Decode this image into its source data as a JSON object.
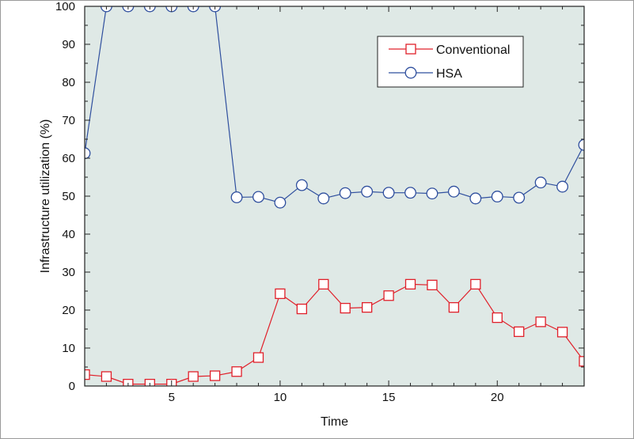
{
  "chart_data": {
    "type": "line",
    "title": "",
    "xlabel": "Time",
    "ylabel": "Infrastructure utilization (%)",
    "xlim": [
      1,
      24
    ],
    "ylim": [
      0,
      100
    ],
    "xticks": [
      5,
      10,
      15,
      20
    ],
    "yticks": [
      0,
      10,
      20,
      30,
      40,
      50,
      60,
      70,
      80,
      90,
      100
    ],
    "grid": false,
    "legend": "top-right",
    "background_color": "#dfe9e6",
    "series": [
      {
        "name": "Conventional",
        "marker": "square",
        "color": "#e0202a",
        "x": [
          1,
          2,
          3,
          4,
          5,
          6,
          7,
          8,
          9,
          10,
          11,
          12,
          13,
          14,
          15,
          16,
          17,
          18,
          19,
          20,
          21,
          22,
          23,
          24
        ],
        "values": [
          3,
          2.5,
          0.5,
          0.5,
          0.5,
          2.5,
          2.7,
          3.8,
          7.5,
          24.3,
          20.3,
          26.8,
          20.5,
          20.7,
          23.8,
          26.8,
          26.6,
          20.7,
          26.8,
          18,
          14.3,
          16.9,
          14.2,
          6.5
        ]
      },
      {
        "name": "HSA",
        "marker": "circle",
        "color": "#2f4f9e",
        "x": [
          1,
          2,
          3,
          4,
          5,
          6,
          7,
          8,
          9,
          10,
          11,
          12,
          13,
          14,
          15,
          16,
          17,
          18,
          19,
          20,
          21,
          22,
          23,
          24
        ],
        "values": [
          61.3,
          100,
          100,
          100,
          100,
          100,
          100,
          49.7,
          49.8,
          48.3,
          52.9,
          49.4,
          50.8,
          51.2,
          50.9,
          50.9,
          50.7,
          51.2,
          49.4,
          49.9,
          49.6,
          53.6,
          52.5,
          63.5
        ]
      }
    ]
  }
}
